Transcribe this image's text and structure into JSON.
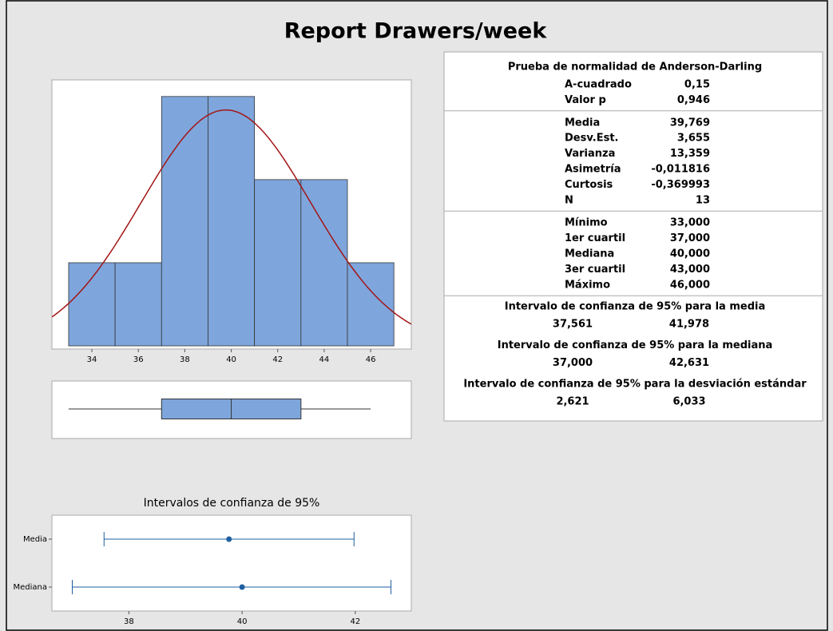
{
  "title": "Report Drawers/week",
  "chart_data": [
    {
      "type": "histogram",
      "bins": [
        33,
        35,
        37,
        39,
        41,
        43,
        45,
        47
      ],
      "counts": [
        1,
        1,
        3,
        3,
        2,
        2,
        1
      ],
      "color": "#7ea6dc",
      "xlim": [
        32.28,
        47.75
      ],
      "ylim": [
        0,
        3.2
      ],
      "xticks": [
        34,
        36,
        38,
        40,
        42,
        44,
        46
      ],
      "curve": {
        "mean": 39.769,
        "sd": 3.655,
        "color": "#a31515"
      }
    },
    {
      "type": "boxplot",
      "min": 33,
      "q1": 37,
      "median": 40,
      "q3": 43,
      "max": 46,
      "color": "#7ea6dc",
      "xlim": [
        32.28,
        47.75
      ]
    },
    {
      "type": "interval",
      "title": "Intervalos de confianza de 95%",
      "categories": [
        "Media",
        "Mediana"
      ],
      "estimates": [
        39.769,
        40
      ],
      "lower": [
        37.561,
        37.0
      ],
      "upper": [
        41.978,
        42.631
      ],
      "color": "#1f5fa0",
      "xlim": [
        36.64,
        42.99
      ],
      "xticks": [
        38,
        40,
        42
      ]
    }
  ],
  "stats": {
    "title": "Prueba de normalidad de Anderson-Darling",
    "sections": [
      [
        [
          "A-cuadrado",
          "0,15"
        ],
        [
          "Valor p",
          "0,946"
        ]
      ],
      [
        [
          "Media",
          "39,769"
        ],
        [
          "Desv.Est.",
          "3,655"
        ],
        [
          "Varianza",
          "13,359"
        ],
        [
          "Asimetría",
          "-0,011816"
        ],
        [
          "Curtosis",
          "-0,369993"
        ],
        [
          "N",
          "13"
        ]
      ],
      [
        [
          "Mínimo",
          "33,000"
        ],
        [
          "1er cuartil",
          "37,000"
        ],
        [
          "Mediana",
          "40,000"
        ],
        [
          "3er cuartil",
          "43,000"
        ],
        [
          "Máximo",
          "46,000"
        ]
      ]
    ],
    "intervals": [
      {
        "heading": "Intervalo de confianza de 95% para la media",
        "values": [
          "37,561",
          "41,978"
        ]
      },
      {
        "heading": "Intervalo de confianza de 95% para la mediana",
        "values": [
          "37,000",
          "42,631"
        ]
      },
      {
        "heading": "Intervalo de confianza de 95% para la desviación estándar",
        "values": [
          "2,621",
          "6,033"
        ]
      }
    ]
  }
}
